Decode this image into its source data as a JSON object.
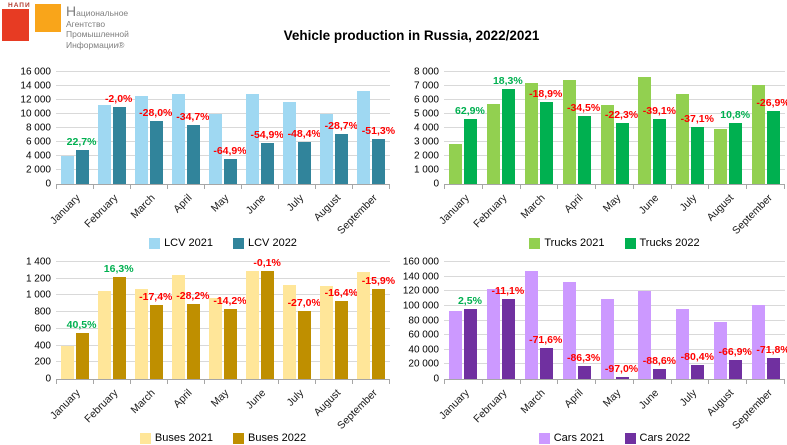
{
  "header": {
    "title": "Vehicle production in Russia, 2022/2021",
    "logo": {
      "acronym": "НАПИ",
      "lines": [
        "Национальное",
        "Агентство",
        "Промышленной",
        "Информации®"
      ],
      "red_square_color": "#e73b23",
      "orange_square_color": "#f9a51a"
    }
  },
  "style": {
    "positive_label_color": "#00B050",
    "negative_label_color": "#FF0000",
    "gridline_color": "#D9D9D9",
    "axis_color": "#A6A6A6"
  },
  "chart_data": [
    {
      "type": "bar",
      "name": "lcv",
      "categories": [
        "January",
        "February",
        "March",
        "April",
        "May",
        "June",
        "July",
        "August",
        "September"
      ],
      "series": [
        {
          "name": "LCV 2021",
          "color": "#9FD8F2",
          "values": [
            4000,
            11300,
            12600,
            12800,
            10000,
            12900,
            11700,
            10000,
            13350
          ]
        },
        {
          "name": "LCV 2022",
          "color": "#31849B",
          "values": [
            4910,
            11070,
            9070,
            8360,
            3510,
            5820,
            6040,
            7130,
            6500
          ]
        }
      ],
      "change_labels": [
        "22,7%",
        "-2,0%",
        "-28,0%",
        "-34,7%",
        "-64,9%",
        "-54,9%",
        "-48,4%",
        "-28,7%",
        "-51,3%"
      ],
      "ylim": [
        0,
        16000
      ],
      "ytick_step": 2000,
      "grid": true,
      "legend_position": "bottom"
    },
    {
      "type": "bar",
      "name": "trucks",
      "categories": [
        "January",
        "February",
        "March",
        "April",
        "May",
        "June",
        "July",
        "August",
        "September"
      ],
      "series": [
        {
          "name": "Trucks 2021",
          "color": "#92D050",
          "values": [
            2850,
            5750,
            7250,
            7400,
            5650,
            7620,
            6420,
            3950,
            7100
          ]
        },
        {
          "name": "Trucks 2022",
          "color": "#00B050",
          "values": [
            4640,
            6800,
            5880,
            4850,
            4390,
            4640,
            4040,
            4380,
            5190
          ]
        }
      ],
      "change_labels": [
        "62,9%",
        "18,3%",
        "-18,9%",
        "-34,5%",
        "-22,3%",
        "-39,1%",
        "-37,1%",
        "10,8%",
        "-26,9%"
      ],
      "ylim": [
        0,
        8000
      ],
      "ytick_step": 1000,
      "grid": true,
      "legend_position": "bottom"
    },
    {
      "type": "bar",
      "name": "buses",
      "categories": [
        "January",
        "February",
        "March",
        "April",
        "May",
        "June",
        "July",
        "August",
        "September"
      ],
      "series": [
        {
          "name": "Buses 2021",
          "color": "#FFE699",
          "values": [
            395,
            1050,
            1075,
            1243,
            970,
            1290,
            1120,
            1110,
            1280
          ]
        },
        {
          "name": "Buses 2022",
          "color": "#BF8F00",
          "values": [
            555,
            1221,
            888,
            893,
            832,
            1289,
            818,
            928,
            1076
          ]
        }
      ],
      "change_labels": [
        "40,5%",
        "16,3%",
        "-17,4%",
        "-28,2%",
        "-14,2%",
        "-0,1%",
        "-27,0%",
        "-16,4%",
        "-15,9%"
      ],
      "ylim": [
        0,
        1400
      ],
      "ytick_step": 200,
      "grid": true,
      "legend_position": "bottom"
    },
    {
      "type": "bar",
      "name": "cars",
      "categories": [
        "January",
        "February",
        "March",
        "April",
        "May",
        "June",
        "July",
        "August",
        "September"
      ],
      "series": [
        {
          "name": "Cars 2021",
          "color": "#CC99FF",
          "values": [
            93000,
            123000,
            147500,
            133000,
            109000,
            120000,
            96000,
            78000,
            101000
          ]
        },
        {
          "name": "Cars 2022",
          "color": "#7030A0",
          "values": [
            95300,
            109300,
            41900,
            18200,
            3270,
            13700,
            18800,
            25800,
            28500
          ]
        }
      ],
      "change_labels": [
        "2,5%",
        "-11,1%",
        "-71,6%",
        "-86,3%",
        "-97,0%",
        "-88,6%",
        "-80,4%",
        "-66,9%",
        "-71,8%"
      ],
      "ylim": [
        0,
        160000
      ],
      "ytick_step": 20000,
      "grid": true,
      "legend_position": "bottom"
    }
  ]
}
